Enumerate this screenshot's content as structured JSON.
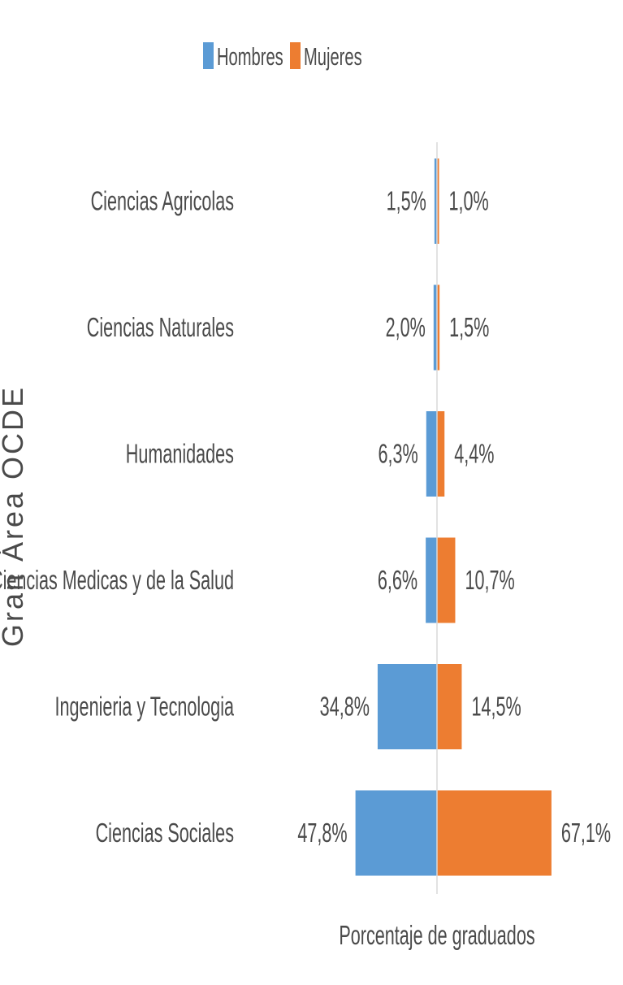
{
  "chart_data": {
    "type": "bar",
    "orientation": "horizontal-diverging",
    "categories": [
      "Ciencias Agricolas",
      "Ciencias Naturales",
      "Humanidades",
      "Ciencias Medicas y de la Salud",
      "Ingenieria y Tecnologia",
      "Ciencias Sociales"
    ],
    "series": [
      {
        "name": "Hombres",
        "color": "#5b9bd5",
        "values": [
          1.5,
          2.0,
          6.3,
          6.6,
          34.8,
          47.8
        ],
        "labels": [
          "1,5%",
          "2,0%",
          "6,3%",
          "6,6%",
          "34,8%",
          "47,8%"
        ]
      },
      {
        "name": "Mujeres",
        "color": "#ed7d31",
        "values": [
          1.0,
          1.5,
          4.4,
          10.7,
          14.5,
          67.1
        ],
        "labels": [
          "1,0%",
          "1,5%",
          "4,4%",
          "10,7%",
          "14,5%",
          "67,1%"
        ]
      }
    ],
    "xlabel": "Porcentaje de graduados",
    "ylabel": "Gran Área OCDE",
    "xlim": [
      -70,
      70
    ],
    "legend_position": "top",
    "grid": false,
    "axis_color": "#d9d9d9"
  }
}
